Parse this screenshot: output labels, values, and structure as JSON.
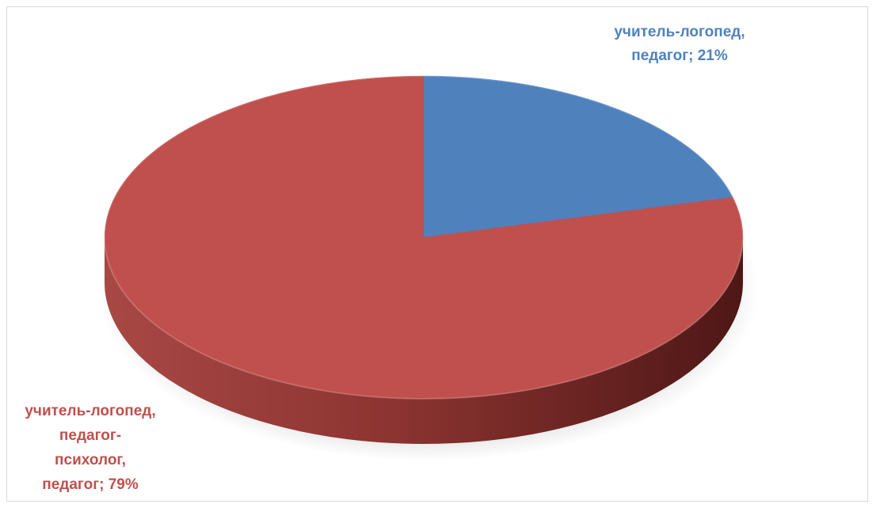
{
  "chart_data": {
    "type": "pie",
    "style": "3d",
    "categories": [
      "учитель-логопед, педагог",
      "учитель-логопед, педагог-психолог, педагог"
    ],
    "values": [
      21,
      79
    ],
    "unit": "%",
    "colors": [
      "#4f81bd",
      "#c0504d"
    ],
    "data_labels": [
      {
        "lines": [
          "учитель-логопед,",
          "педагог; 21%"
        ],
        "color": "#4f81bd"
      },
      {
        "lines": [
          "учитель-логопед,",
          "педагог-",
          "психолог,",
          "педагог; 79%"
        ],
        "color": "#c0504d"
      }
    ],
    "legend": "none"
  }
}
